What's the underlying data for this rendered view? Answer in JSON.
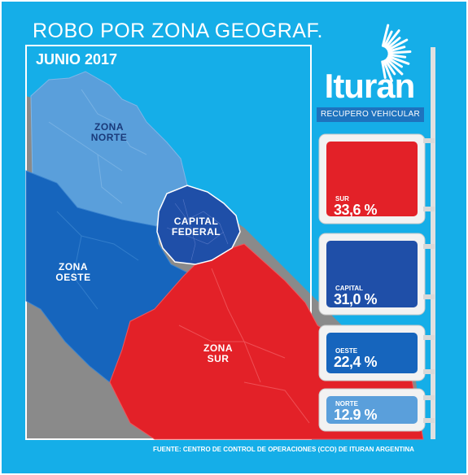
{
  "header": {
    "title": "ROBO POR ZONA GEOGRAF.",
    "subtitle": "JUNIO 2017"
  },
  "brand": {
    "name": "Ituran",
    "tagline": "RECUPERO VEHICULAR",
    "icon": "sunburst-icon"
  },
  "map": {
    "zones": [
      {
        "label": "ZONA\nNORTE",
        "color": "#5a9fdb"
      },
      {
        "label": "CAPITAL\nFEDERAL",
        "color": "#1f4fa8"
      },
      {
        "label": "ZONA\nOESTE",
        "color": "#1665bd"
      },
      {
        "label": "ZONA\nSUR",
        "color": "#e32128"
      }
    ]
  },
  "chart_data": {
    "type": "table",
    "rows": [
      {
        "label": "SUR",
        "value_text": "33,6 %",
        "value": 33.6,
        "color": "#e32128"
      },
      {
        "label": "CAPITAL",
        "value_text": "31,0 %",
        "value": 31.0,
        "color": "#1f4fa8"
      },
      {
        "label": "OESTE",
        "value_text": "22,4 %",
        "value": 22.4,
        "color": "#1665bd"
      },
      {
        "label": "NORTE",
        "value_text": "12.9 %",
        "value": 12.9,
        "color": "#5a9fdb"
      }
    ]
  },
  "footer": {
    "source": "FUENTE: CENTRO DE CONTROL DE OPERACIONES (CCO) DE ITURAN ARGENTINA"
  }
}
